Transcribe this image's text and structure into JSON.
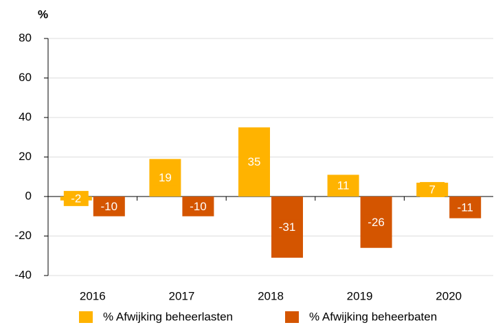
{
  "chart_data": {
    "type": "bar",
    "unit": "%",
    "categories": [
      "2016",
      "2017",
      "2018",
      "2019",
      "2020"
    ],
    "series": [
      {
        "name": "% Afwijking beheerlasten",
        "color": "#ffb300",
        "values": [
          -2,
          19,
          35,
          11,
          7
        ]
      },
      {
        "name": "% Afwijking beheerbaten",
        "color": "#d45500",
        "values": [
          -10,
          -10,
          -31,
          -26,
          -11
        ]
      }
    ],
    "ylim": [
      -40,
      80
    ],
    "yticks": [
      -40,
      -20,
      0,
      20,
      40,
      60,
      80
    ],
    "grid": true,
    "legend": "bottom"
  }
}
